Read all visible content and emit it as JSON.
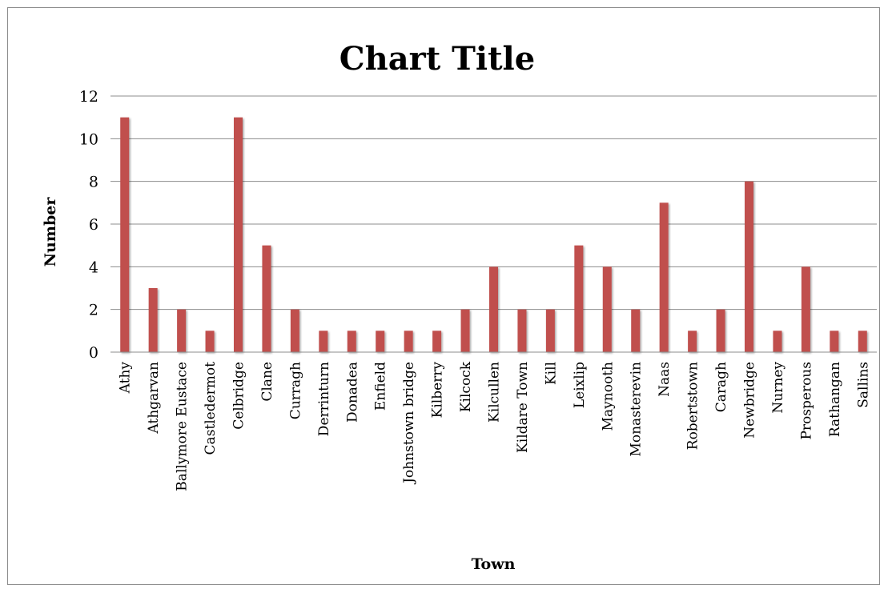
{
  "chart_data": {
    "type": "bar",
    "title": "Chart Title",
    "xlabel": "Town",
    "ylabel": "Number",
    "ylim": [
      0,
      12
    ],
    "yticks": [
      0,
      2,
      4,
      6,
      8,
      10,
      12
    ],
    "grid": true,
    "legend": "none",
    "bar_color": "#c0504d",
    "categories": [
      "Athy",
      "Athgarvan",
      "Ballymore Eustace",
      "Castledermot",
      "Celbridge",
      "Clane",
      "Curragh",
      "Derrinturn",
      "Donadea",
      "Enfield",
      "Johnstown bridge",
      "Kilberry",
      "Kilcock",
      "Kilcullen",
      "Kildare Town",
      "Kill",
      "Leixlip",
      "Maynooth",
      "Monasterevin",
      "Naas",
      "Robertstown",
      "Caragh",
      "Newbridge",
      "Nurney",
      "Prosperous",
      "Rathangan",
      "Sallins"
    ],
    "values": [
      11,
      3,
      2,
      1,
      11,
      5,
      2,
      1,
      1,
      1,
      1,
      1,
      2,
      4,
      2,
      2,
      5,
      4,
      2,
      7,
      1,
      2,
      8,
      1,
      4,
      1,
      1
    ]
  }
}
